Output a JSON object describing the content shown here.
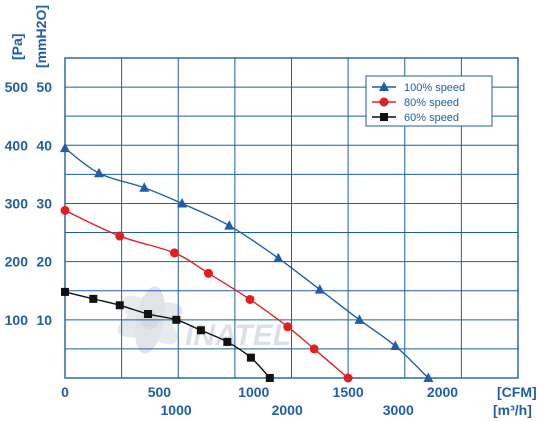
{
  "chart_data": {
    "type": "line",
    "title": "",
    "x_unit_primary": "[CFM]",
    "x_unit_secondary": "[m³/h]",
    "y_unit_primary": "[Pa]",
    "y_unit_secondary": "[mmH2O]",
    "xlim": [
      0,
      2400
    ],
    "ylim": [
      0,
      550
    ],
    "x_ticks_cfm": [
      "0",
      "500",
      "1000",
      "1500",
      "2000"
    ],
    "x_ticks_m3h": [
      "1000",
      "2000",
      "3000"
    ],
    "y_ticks_pa": [
      "100",
      "200",
      "300",
      "400",
      "500"
    ],
    "y_ticks_mmh2o": [
      "10",
      "20",
      "30",
      "40",
      "50"
    ],
    "grid": true,
    "legend_position": "top-right",
    "watermark": "INATEL",
    "series": [
      {
        "name": "100%  speed",
        "color": "#1f5ea8",
        "marker": "triangle",
        "x": [
          0,
          180,
          420,
          620,
          870,
          1130,
          1350,
          1560,
          1750,
          1925
        ],
        "y": [
          395,
          352,
          327,
          300,
          262,
          206,
          152,
          100,
          55,
          0
        ]
      },
      {
        "name": "80%  speed",
        "color": "#e02020",
        "marker": "circle",
        "x": [
          0,
          290,
          580,
          760,
          980,
          1180,
          1320,
          1500
        ],
        "y": [
          288,
          244,
          215,
          180,
          135,
          88,
          50,
          0
        ]
      },
      {
        "name": "60%  speed",
        "color": "#111111",
        "marker": "square",
        "x": [
          0,
          150,
          290,
          440,
          590,
          720,
          860,
          985,
          1085
        ],
        "y": [
          148,
          136,
          125,
          110,
          100,
          82,
          62,
          35,
          0
        ]
      }
    ]
  }
}
